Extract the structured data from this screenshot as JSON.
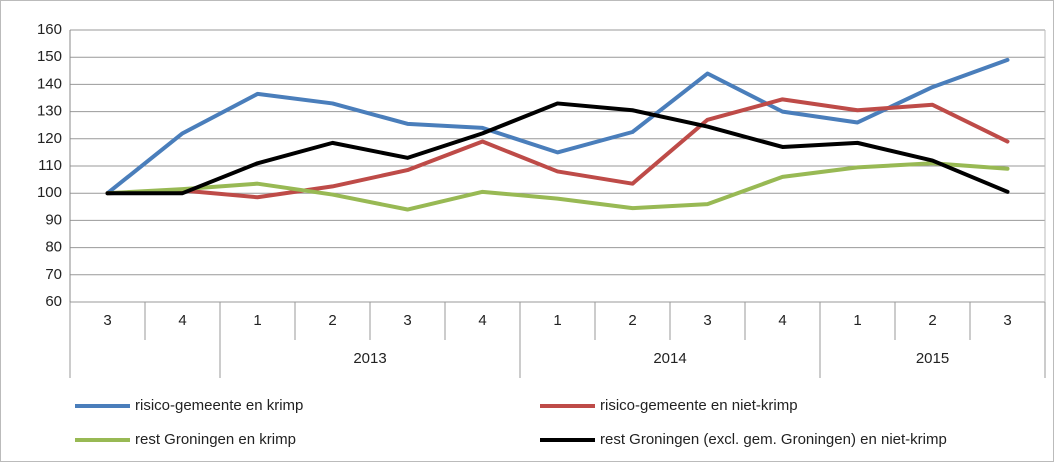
{
  "chart_data": {
    "type": "line",
    "categories": [
      "3",
      "4",
      "1",
      "2",
      "3",
      "4",
      "1",
      "2",
      "3",
      "4",
      "1",
      "2",
      "3"
    ],
    "category_groups": {
      "labels": [
        null,
        "2013",
        "2014",
        "2015"
      ],
      "sizes": [
        2,
        4,
        4,
        3
      ]
    },
    "series": [
      {
        "name": "risico-gemeente en krimp",
        "color": "#4a7ebb",
        "values": [
          100,
          122,
          136.5,
          133,
          125.5,
          124,
          115,
          122.5,
          144,
          130,
          126,
          139,
          149
        ]
      },
      {
        "name": "risico-gemeente en niet-krimp",
        "color": "#be4b48",
        "values": [
          100,
          101,
          98.5,
          102.5,
          108.5,
          119,
          108,
          103.5,
          127,
          134.5,
          130.5,
          132.5,
          119
        ]
      },
      {
        "name": "rest Groningen en krimp",
        "color": "#98b954",
        "values": [
          100,
          101.5,
          103.5,
          99.5,
          94,
          100.5,
          98,
          94.5,
          96,
          106,
          109.5,
          111,
          109
        ]
      },
      {
        "name": "rest Groningen (excl. gem. Groningen) en niet-krimp",
        "color": "#000000",
        "values": [
          100,
          100,
          111,
          118.5,
          113,
          122,
          133,
          130.5,
          124.5,
          117,
          118.5,
          112,
          100.5
        ]
      }
    ],
    "ylim": [
      60,
      160
    ],
    "yticks": [
      60,
      70,
      80,
      90,
      100,
      110,
      120,
      130,
      140,
      150,
      160
    ],
    "grid": true
  }
}
